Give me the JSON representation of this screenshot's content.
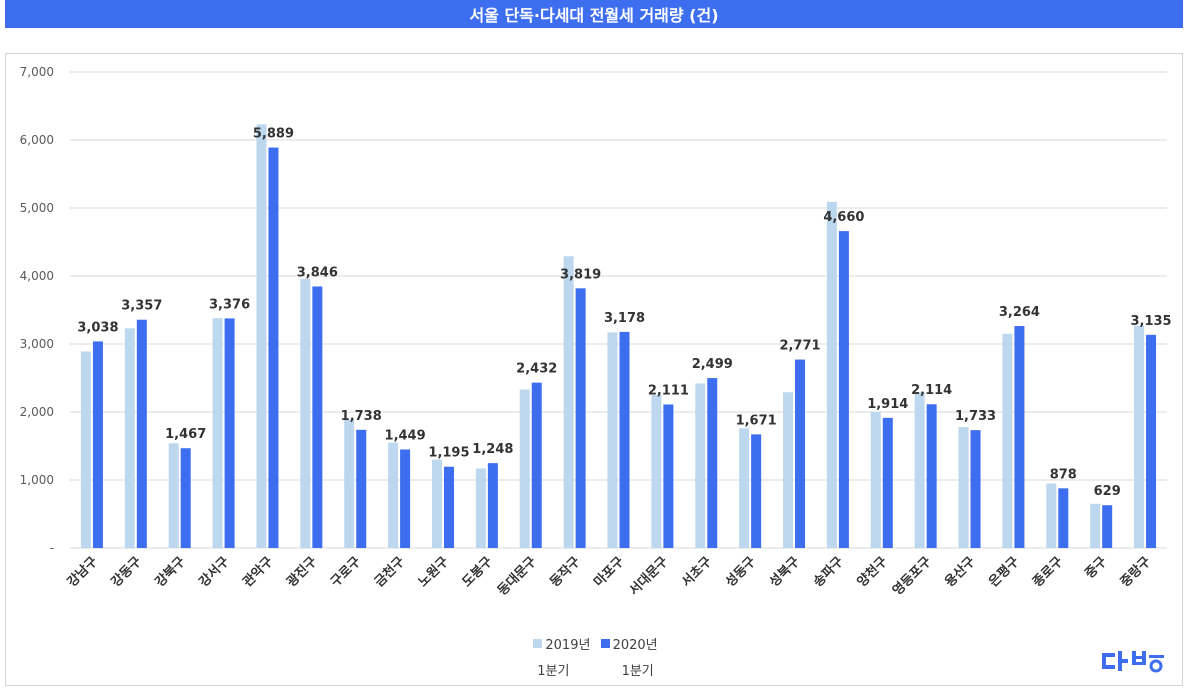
{
  "title": "서울 단독·다세대 전월세 거래량 (건)",
  "colors": {
    "s2019": "#bdd7ee",
    "s2020": "#3d6ef0",
    "title_bg": "#3d6ef0",
    "grid": "#d9d9d9"
  },
  "legend": {
    "label_2019": "2019년",
    "label_2020": "2020년",
    "sub_2019": "1분기",
    "sub_2020": "1분기"
  },
  "logo": {
    "name": "dabang-logo"
  },
  "chart_data": {
    "type": "bar",
    "title": "서울 단독·다세대 전월세 거래량 (건)",
    "ylim": [
      0,
      7000
    ],
    "yticks": [
      0,
      1000,
      2000,
      3000,
      4000,
      5000,
      6000,
      7000
    ],
    "ytick_labels": [
      "-",
      "1,000",
      "2,000",
      "3,000",
      "4,000",
      "5,000",
      "6,000",
      "7,000"
    ],
    "grid": true,
    "legend_position": "bottom",
    "categories": [
      "강남구",
      "강동구",
      "강북구",
      "강서구",
      "관악구",
      "광진구",
      "구로구",
      "금천구",
      "노원구",
      "도봉구",
      "동대문구",
      "동작구",
      "마포구",
      "서대문구",
      "서초구",
      "성동구",
      "성북구",
      "송파구",
      "양천구",
      "영등포구",
      "용산구",
      "은평구",
      "종로구",
      "중구",
      "중랑구"
    ],
    "series": [
      {
        "name": "2019년",
        "values": [
          2890,
          3230,
          1540,
          3380,
          6230,
          3960,
          1890,
          1550,
          1300,
          1170,
          2330,
          4290,
          3170,
          2250,
          2420,
          1760,
          2290,
          5090,
          2000,
          2290,
          1780,
          3150,
          950,
          650,
          3270
        ]
      },
      {
        "name": "2020년",
        "values": [
          3038,
          3357,
          1467,
          3376,
          5889,
          3846,
          1738,
          1449,
          1195,
          1248,
          2432,
          3819,
          3178,
          2111,
          2499,
          1671,
          2771,
          4660,
          1914,
          2114,
          1733,
          3264,
          878,
          629,
          3135
        ]
      }
    ],
    "data_labels_2020": [
      "3,038",
      "3,357",
      "1,467",
      "3,376",
      "5,889",
      "3,846",
      "1,738",
      "1,449",
      "1,195",
      "1,248",
      "2,432",
      "3,819",
      "3,178",
      "2,111",
      "2,499",
      "1,671",
      "2,771",
      "4,660",
      "1,914",
      "2,114",
      "1,733",
      "3,264",
      "878",
      "629",
      "3,135"
    ]
  }
}
